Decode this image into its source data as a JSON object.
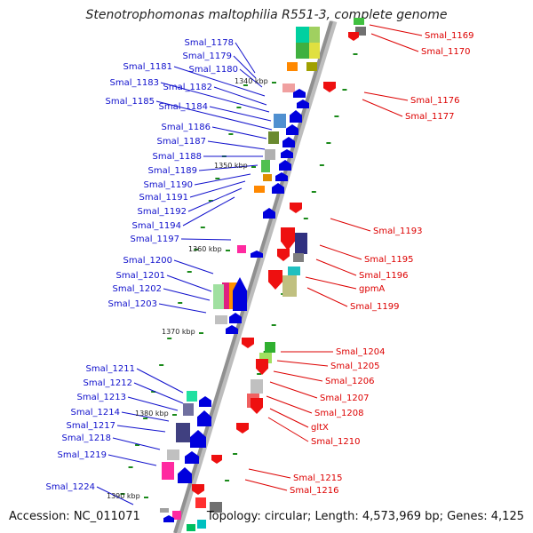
{
  "title": "Stenotrophomonas maltophilia R551-3, complete genome",
  "footer": {
    "accession": "Accession: NC_011071",
    "summary": "Topology: circular; Length: 4,573,969 bp; Genes: 4,125"
  },
  "colors": {
    "left_label": "#1010cc",
    "right_label": "#dd0000",
    "backbone": "#909090"
  },
  "kbp_ticks": [
    "1340 kbp",
    "1350 kbp",
    "1360 kbp",
    "1370 kbp",
    "1380 kbp",
    "1390 kbp"
  ],
  "left_genes": [
    "Smal_1178",
    "Smal_1179",
    "Smal_1180",
    "Smal_1181",
    "Smal_1182",
    "Smal_1183",
    "Smal_1184",
    "Smal_1185",
    "Smal_1186",
    "Smal_1187",
    "Smal_1188",
    "Smal_1189",
    "Smal_1190",
    "Smal_1191",
    "Smal_1192",
    "Smal_1194",
    "Smal_1197",
    "Smal_1200",
    "Smal_1201",
    "Smal_1202",
    "Smal_1203",
    "Smal_1211",
    "Smal_1212",
    "Smal_1213",
    "Smal_1214",
    "Smal_1217",
    "Smal_1218",
    "Smal_1219",
    "Smal_1224"
  ],
  "right_genes": [
    "Smal_1169",
    "Smal_1170",
    "Smal_1176",
    "Smal_1177",
    "Smal_1193",
    "Smal_1195",
    "Smal_1196",
    "gpmA",
    "Smal_1199",
    "Smal_1204",
    "Smal_1205",
    "Smal_1206",
    "Smal_1207",
    "Smal_1208",
    "gltX",
    "Smal_1210",
    "Smal_1215",
    "Smal_1216"
  ]
}
